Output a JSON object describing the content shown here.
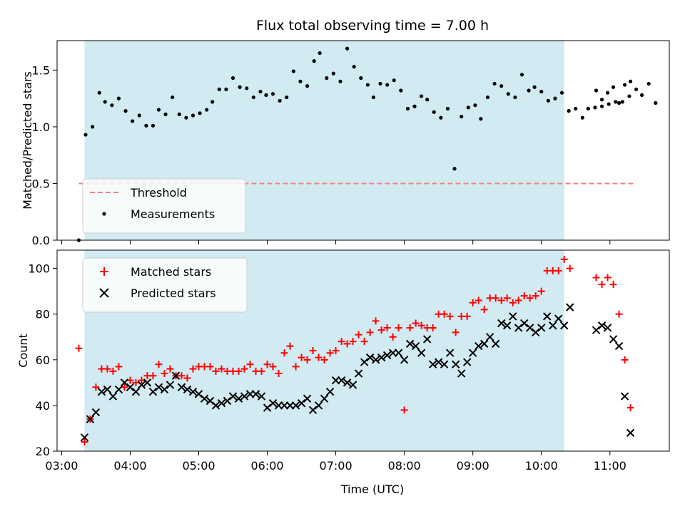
{
  "chart_data": {
    "title": "Flux total observing time = 7.00 h",
    "shaded_region": {
      "start": "03:20",
      "end": "10:20",
      "color": "#add8e6"
    },
    "xlabel": "Time (UTC)",
    "xlim": [
      "02:56",
      "11:52"
    ],
    "xticks": [
      "03:00",
      "04:00",
      "05:00",
      "06:00",
      "07:00",
      "08:00",
      "09:00",
      "10:00",
      "11:00"
    ],
    "panels": [
      {
        "type": "scatter",
        "ylabel": "Matched/Predicted stars",
        "ylim": [
          0,
          1.76
        ],
        "yticks": [
          "0.0",
          "0.5",
          "1.0",
          "1.5"
        ],
        "legend_position": "lower-left",
        "threshold": {
          "name": "Threshold",
          "value": 0.5,
          "x_start": "03:15",
          "x_end": "11:22",
          "color": "#f08080"
        },
        "series": [
          {
            "name": "Measurements",
            "marker": "dot",
            "color": "#000000",
            "points": [
              [
                "03:15",
                0.0
              ],
              [
                "03:21",
                0.93
              ],
              [
                "03:27",
                1.0
              ],
              [
                "03:33",
                1.3
              ],
              [
                "03:38",
                1.22
              ],
              [
                "03:44",
                1.19
              ],
              [
                "03:50",
                1.25
              ],
              [
                "03:56",
                1.14
              ],
              [
                "04:02",
                1.05
              ],
              [
                "04:08",
                1.1
              ],
              [
                "04:14",
                1.01
              ],
              [
                "04:20",
                1.01
              ],
              [
                "04:25",
                1.15
              ],
              [
                "04:31",
                1.11
              ],
              [
                "04:37",
                1.26
              ],
              [
                "04:43",
                1.11
              ],
              [
                "04:49",
                1.08
              ],
              [
                "04:55",
                1.1
              ],
              [
                "05:01",
                1.12
              ],
              [
                "05:07",
                1.15
              ],
              [
                "05:12",
                1.22
              ],
              [
                "05:18",
                1.33
              ],
              [
                "05:24",
                1.33
              ],
              [
                "05:30",
                1.43
              ],
              [
                "05:36",
                1.35
              ],
              [
                "05:42",
                1.34
              ],
              [
                "05:48",
                1.26
              ],
              [
                "05:54",
                1.31
              ],
              [
                "05:59",
                1.28
              ],
              [
                "06:05",
                1.29
              ],
              [
                "06:11",
                1.23
              ],
              [
                "06:17",
                1.26
              ],
              [
                "06:23",
                1.49
              ],
              [
                "06:29",
                1.4
              ],
              [
                "06:35",
                1.36
              ],
              [
                "06:41",
                1.58
              ],
              [
                "06:46",
                1.65
              ],
              [
                "06:52",
                1.43
              ],
              [
                "06:58",
                1.47
              ],
              [
                "07:04",
                1.4
              ],
              [
                "07:10",
                1.69
              ],
              [
                "07:16",
                1.53
              ],
              [
                "07:22",
                1.43
              ],
              [
                "07:28",
                1.37
              ],
              [
                "07:33",
                1.26
              ],
              [
                "07:39",
                1.38
              ],
              [
                "07:45",
                1.37
              ],
              [
                "07:51",
                1.41
              ],
              [
                "07:57",
                1.32
              ],
              [
                "08:03",
                1.16
              ],
              [
                "08:09",
                1.18
              ],
              [
                "08:15",
                1.27
              ],
              [
                "08:20",
                1.24
              ],
              [
                "08:26",
                1.13
              ],
              [
                "08:32",
                1.08
              ],
              [
                "08:38",
                1.16
              ],
              [
                "08:44",
                0.63
              ],
              [
                "08:50",
                1.09
              ],
              [
                "08:56",
                1.17
              ],
              [
                "09:02",
                1.19
              ],
              [
                "09:07",
                1.07
              ],
              [
                "09:13",
                1.26
              ],
              [
                "09:19",
                1.38
              ],
              [
                "09:25",
                1.36
              ],
              [
                "09:31",
                1.29
              ],
              [
                "09:37",
                1.26
              ],
              [
                "09:43",
                1.46
              ],
              [
                "09:49",
                1.32
              ],
              [
                "09:54",
                1.35
              ],
              [
                "10:00",
                1.31
              ],
              [
                "10:06",
                1.23
              ],
              [
                "10:12",
                1.25
              ],
              [
                "10:18",
                1.3
              ],
              [
                "10:24",
                1.14
              ],
              [
                "10:30",
                1.16
              ],
              [
                "10:36",
                1.08
              ],
              [
                "10:41",
                1.16
              ],
              [
                "10:47",
                1.17
              ],
              [
                "10:53",
                1.18
              ],
              [
                "10:59",
                1.2
              ],
              [
                "11:05",
                1.22
              ],
              [
                "11:11",
                1.22
              ],
              [
                "11:17",
                1.27
              ],
              [
                "11:23",
                1.33
              ],
              [
                "11:28",
                1.28
              ],
              [
                "11:34",
                1.38
              ],
              [
                "11:40",
                1.21
              ],
              [
                "10:48",
                1.32
              ],
              [
                "10:53",
                1.24
              ],
              [
                "10:58",
                1.3
              ],
              [
                "11:03",
                1.35
              ],
              [
                "11:08",
                1.21
              ],
              [
                "11:13",
                1.37
              ],
              [
                "11:18",
                1.4
              ]
            ]
          }
        ]
      },
      {
        "type": "scatter",
        "ylabel": "Count",
        "ylim": [
          20,
          108
        ],
        "yticks": [
          "20",
          "40",
          "60",
          "80",
          "100"
        ],
        "legend_position": "upper-left",
        "series": [
          {
            "name": "Matched stars",
            "marker": "plus",
            "color": "#ff0000",
            "points": []
          },
          {
            "name": "Predicted stars",
            "marker": "x",
            "color": "#000000",
            "points": []
          }
        ]
      }
    ]
  }
}
